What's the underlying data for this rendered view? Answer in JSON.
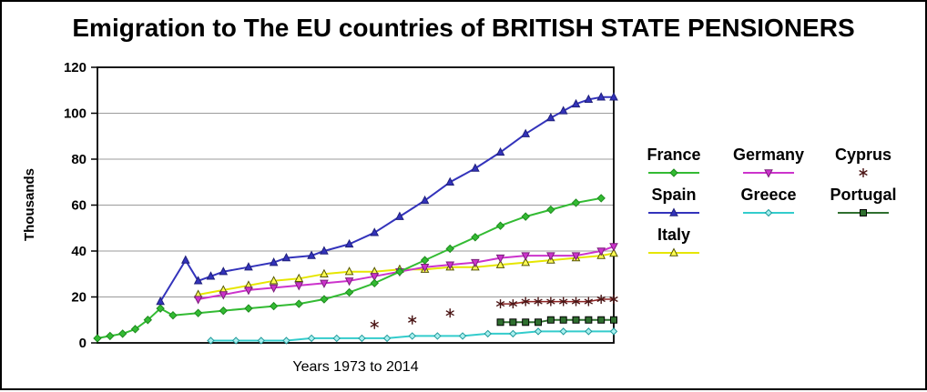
{
  "chart_data": {
    "type": "line",
    "title": "Emigration to The EU countries of BRITISH STATE PENSIONERS",
    "ylabel": "Thousands",
    "xlabel": "Years 1973 to 2014",
    "xlim": [
      1973,
      2014
    ],
    "ylim": [
      0,
      120
    ],
    "yticks": [
      0,
      20,
      40,
      60,
      80,
      100,
      120
    ],
    "grid": "horizontal",
    "legend_position": "right",
    "legend_rows": [
      [
        "France",
        "Germany",
        "Cyprus"
      ],
      [
        "Spain",
        "Greece",
        "Portugal"
      ],
      [
        "Italy"
      ]
    ],
    "series": [
      {
        "name": "Italy",
        "color": "#e6e600",
        "marker": "triangle-up",
        "marker_fill": "#ffff55",
        "marker_stroke": "#555500",
        "marker_size": 4,
        "points": [
          [
            1981,
            21
          ],
          [
            1983,
            23
          ],
          [
            1985,
            25
          ],
          [
            1987,
            27
          ],
          [
            1989,
            28
          ],
          [
            1991,
            30
          ],
          [
            1993,
            31
          ],
          [
            1995,
            31
          ],
          [
            1997,
            32
          ],
          [
            1999,
            32
          ],
          [
            2001,
            33
          ],
          [
            2003,
            33
          ],
          [
            2005,
            34
          ],
          [
            2007,
            35
          ],
          [
            2009,
            36
          ],
          [
            2011,
            37
          ],
          [
            2013,
            38
          ],
          [
            2014,
            39
          ]
        ]
      },
      {
        "name": "Germany",
        "color": "#cc33cc",
        "marker": "triangle-down",
        "marker_fill": "#cc33cc",
        "marker_stroke": "#7a1f7a",
        "marker_size": 4,
        "points": [
          [
            1981,
            19
          ],
          [
            1983,
            21
          ],
          [
            1985,
            23
          ],
          [
            1987,
            24
          ],
          [
            1989,
            25
          ],
          [
            1991,
            26
          ],
          [
            1993,
            27
          ],
          [
            1995,
            29
          ],
          [
            1997,
            31
          ],
          [
            1999,
            33
          ],
          [
            2001,
            34
          ],
          [
            2003,
            35
          ],
          [
            2005,
            37
          ],
          [
            2007,
            38
          ],
          [
            2009,
            38
          ],
          [
            2011,
            38
          ],
          [
            2013,
            40
          ],
          [
            2014,
            42
          ]
        ]
      },
      {
        "name": "Cyprus",
        "color": "#8b2323",
        "marker": "asterisk",
        "marker_stroke": "#4a1414",
        "marker_size": 5,
        "line_width": 1.5,
        "legend_line": false,
        "points": [
          [
            1995,
            8
          ],
          null,
          [
            1998,
            10
          ],
          null,
          [
            2001,
            13
          ],
          null,
          [
            2005,
            17
          ],
          [
            2006,
            17
          ],
          [
            2007,
            18
          ],
          [
            2008,
            18
          ],
          [
            2009,
            18
          ],
          [
            2010,
            18
          ],
          [
            2011,
            18
          ],
          [
            2012,
            18
          ],
          [
            2013,
            19
          ],
          [
            2014,
            19
          ]
        ]
      },
      {
        "name": "Greece",
        "color": "#33cccc",
        "marker": "diamond",
        "marker_fill": "#aaf0f0",
        "marker_stroke": "#1f9a9a",
        "marker_size": 3.5,
        "points": [
          [
            1982,
            1
          ],
          [
            1984,
            1
          ],
          [
            1986,
            1
          ],
          [
            1988,
            1
          ],
          [
            1990,
            2
          ],
          [
            1992,
            2
          ],
          [
            1994,
            2
          ],
          [
            1996,
            2
          ],
          [
            1998,
            3
          ],
          [
            2000,
            3
          ],
          [
            2002,
            3
          ],
          [
            2004,
            4
          ],
          [
            2006,
            4
          ],
          [
            2008,
            5
          ],
          [
            2010,
            5
          ],
          [
            2012,
            5
          ],
          [
            2014,
            5
          ]
        ]
      },
      {
        "name": "Portugal",
        "color": "#2f6f2f",
        "marker": "square",
        "marker_fill": "#2f6f2f",
        "marker_stroke": "#000000",
        "marker_size": 4,
        "points": [
          [
            2005,
            9
          ],
          [
            2006,
            9
          ],
          [
            2007,
            9
          ],
          [
            2008,
            9
          ],
          [
            2009,
            10
          ],
          [
            2010,
            10
          ],
          [
            2011,
            10
          ],
          [
            2012,
            10
          ],
          [
            2013,
            10
          ],
          [
            2014,
            10
          ]
        ]
      },
      {
        "name": "France",
        "color": "#33bb33",
        "marker": "diamond",
        "marker_fill": "#33bb33",
        "marker_stroke": "#1d8a1d",
        "marker_size": 4,
        "points": [
          [
            1973,
            2
          ],
          [
            1974,
            3
          ],
          [
            1975,
            4
          ],
          [
            1976,
            6
          ],
          [
            1977,
            10
          ],
          [
            1978,
            15
          ],
          [
            1979,
            12
          ],
          [
            1981,
            13
          ],
          [
            1983,
            14
          ],
          [
            1985,
            15
          ],
          [
            1987,
            16
          ],
          [
            1989,
            17
          ],
          [
            1991,
            19
          ],
          [
            1993,
            22
          ],
          [
            1995,
            26
          ],
          [
            1997,
            31
          ],
          [
            1999,
            36
          ],
          [
            2001,
            41
          ],
          [
            2003,
            46
          ],
          [
            2005,
            51
          ],
          [
            2007,
            55
          ],
          [
            2009,
            58
          ],
          [
            2011,
            61
          ],
          [
            2013,
            63
          ]
        ]
      },
      {
        "name": "Spain",
        "color": "#3333bb",
        "marker": "triangle-up",
        "marker_fill": "#3333bb",
        "marker_stroke": "#1f1f7a",
        "marker_size": 4,
        "points": [
          [
            1978,
            18
          ],
          [
            1980,
            36
          ],
          [
            1981,
            27
          ],
          [
            1982,
            29
          ],
          [
            1983,
            31
          ],
          [
            1985,
            33
          ],
          [
            1987,
            35
          ],
          [
            1988,
            37
          ],
          [
            1990,
            38
          ],
          [
            1991,
            40
          ],
          [
            1993,
            43
          ],
          [
            1995,
            48
          ],
          [
            1997,
            55
          ],
          [
            1999,
            62
          ],
          [
            2001,
            70
          ],
          [
            2003,
            76
          ],
          [
            2005,
            83
          ],
          [
            2007,
            91
          ],
          [
            2009,
            98
          ],
          [
            2010,
            101
          ],
          [
            2011,
            104
          ],
          [
            2012,
            106
          ],
          [
            2013,
            107
          ],
          [
            2014,
            107
          ]
        ]
      }
    ]
  }
}
